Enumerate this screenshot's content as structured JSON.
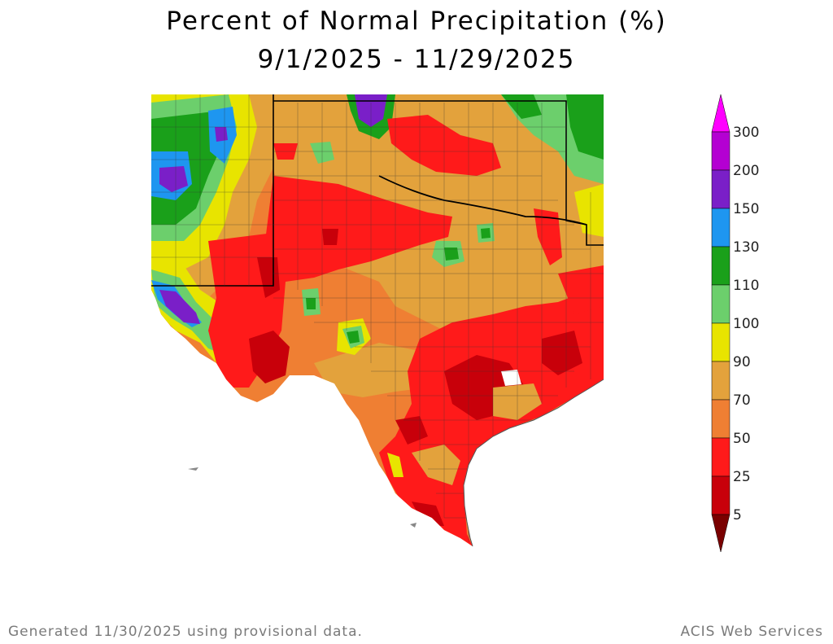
{
  "title": "Percent of Normal Precipitation (%)",
  "date_range": "9/1/2025 - 11/29/2025",
  "legend": {
    "bins": [
      {
        "label": "5",
        "color": "#7a0000"
      },
      {
        "label": "25",
        "color": "#c8000a"
      },
      {
        "label": "50",
        "color": "#ff1a1a"
      },
      {
        "label": "70",
        "color": "#ef7f33"
      },
      {
        "label": "90",
        "color": "#e3a23c"
      },
      {
        "label": "100",
        "color": "#e8e400"
      },
      {
        "label": "110",
        "color": "#6ccf6c"
      },
      {
        "label": "130",
        "color": "#1aa01a"
      },
      {
        "label": "150",
        "color": "#1e96f0"
      },
      {
        "label": "200",
        "color": "#7a1fc8"
      },
      {
        "label": "300",
        "color": "#b400d2"
      }
    ],
    "top_arrow_color": "#ff00ff",
    "bottom_arrow_color": "#7a0000"
  },
  "footer": {
    "generated": "Generated 11/30/2025  using provisional data.",
    "credit": "ACIS Web Services"
  }
}
